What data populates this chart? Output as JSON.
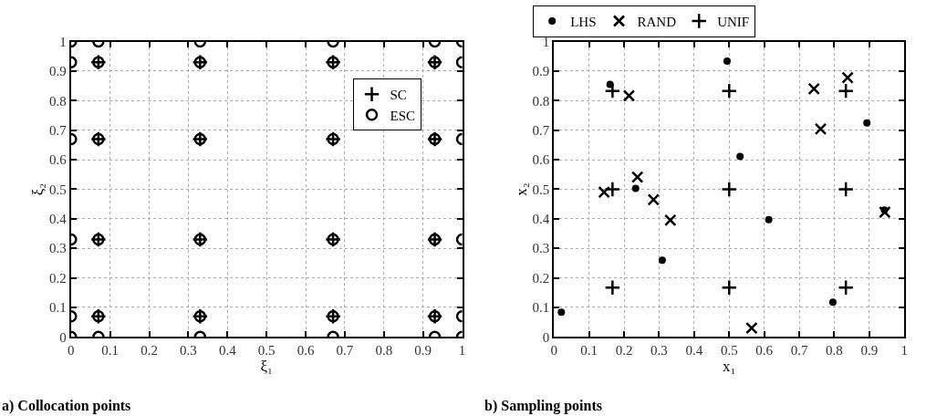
{
  "chart_data": [
    {
      "type": "scatter",
      "xlabel": "ξ₁",
      "ylabel": "ξ₂",
      "annotations": [
        "a) Collocation points"
      ],
      "xlim": [
        0,
        1
      ],
      "ylim": [
        0,
        1
      ],
      "xticks": [
        0,
        0.1,
        0.2,
        0.3,
        0.4,
        0.5,
        0.6,
        0.7,
        0.8,
        0.9,
        1
      ],
      "yticks": [
        0,
        0.1,
        0.2,
        0.3,
        0.4,
        0.5,
        0.6,
        0.7,
        0.8,
        0.9,
        1
      ],
      "grid": true,
      "legend": "top right",
      "series": [
        {
          "name": "SC",
          "color": "#000000",
          "marker": "cross",
          "x": [
            0.07,
            0.07,
            0.07,
            0.07,
            0.33,
            0.33,
            0.33,
            0.33,
            0.67,
            0.67,
            0.67,
            0.67,
            0.93,
            0.93,
            0.93,
            0.93
          ],
          "values": [
            0.07,
            0.33,
            0.67,
            0.93,
            0.07,
            0.33,
            0.67,
            0.93,
            0.07,
            0.33,
            0.67,
            0.93,
            0.07,
            0.33,
            0.67,
            0.93
          ]
        },
        {
          "name": "ESC",
          "color": "#000000",
          "marker": "circle-open",
          "x": [
            0,
            0,
            0,
            0,
            0,
            0,
            0.07,
            0.07,
            0.07,
            0.07,
            0.07,
            0.07,
            0.33,
            0.33,
            0.33,
            0.33,
            0.33,
            0.33,
            0.67,
            0.67,
            0.67,
            0.67,
            0.67,
            0.67,
            0.93,
            0.93,
            0.93,
            0.93,
            0.93,
            0.93,
            1,
            1,
            1,
            1,
            1,
            1
          ],
          "values": [
            0,
            0.07,
            0.33,
            0.67,
            0.93,
            1,
            0,
            0.07,
            0.33,
            0.67,
            0.93,
            1,
            0,
            0.07,
            0.33,
            0.67,
            0.93,
            1,
            0,
            0.07,
            0.33,
            0.67,
            0.93,
            1,
            0,
            0.07,
            0.33,
            0.67,
            0.93,
            1,
            0,
            0.07,
            0.33,
            0.67,
            0.93,
            1
          ]
        }
      ]
    },
    {
      "type": "scatter",
      "xlabel": "x₁",
      "ylabel": "x₂",
      "annotations": [
        "b) Sampling points"
      ],
      "xlim": [
        0,
        1
      ],
      "ylim": [
        0,
        1
      ],
      "xticks": [
        0,
        0.1,
        0.2,
        0.3,
        0.4,
        0.5,
        0.6,
        0.7,
        0.8,
        0.9,
        1
      ],
      "yticks": [
        0,
        0.1,
        0.2,
        0.3,
        0.4,
        0.5,
        0.6,
        0.7,
        0.8,
        0.9,
        1
      ],
      "grid": true,
      "legend": "top left",
      "series": [
        {
          "name": "LHS",
          "color": "#000000",
          "marker": "circle",
          "x": [
            0.021,
            0.16,
            0.233,
            0.309,
            0.494,
            0.531,
            0.613,
            0.796,
            0.893,
            0.943
          ],
          "values": [
            0.084,
            0.855,
            0.503,
            0.26,
            0.934,
            0.611,
            0.397,
            0.118,
            0.725,
            0.43
          ]
        },
        {
          "name": "RAND",
          "color": "#000000",
          "marker": "x",
          "x": [
            0.143,
            0.214,
            0.238,
            0.284,
            0.332,
            0.564,
            0.742,
            0.761,
            0.838,
            0.944
          ],
          "values": [
            0.49,
            0.817,
            0.541,
            0.465,
            0.395,
            0.03,
            0.84,
            0.704,
            0.878,
            0.422
          ]
        },
        {
          "name": "UNIF",
          "color": "#000000",
          "marker": "cross",
          "x": [
            0.167,
            0.167,
            0.167,
            0.5,
            0.5,
            0.5,
            0.833,
            0.833,
            0.833
          ],
          "values": [
            0.167,
            0.5,
            0.833,
            0.167,
            0.5,
            0.833,
            0.167,
            0.5,
            0.833
          ]
        }
      ]
    }
  ]
}
